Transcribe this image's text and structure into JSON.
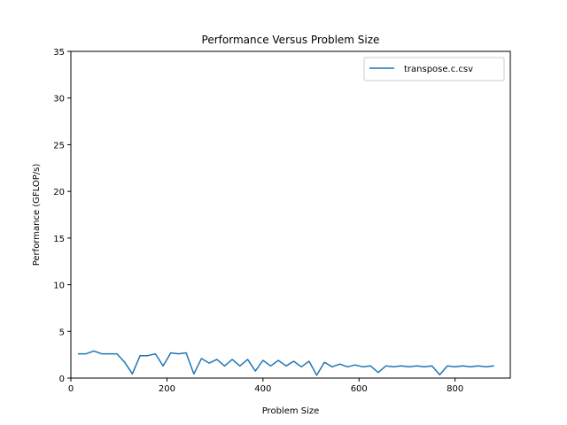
{
  "chart_data": {
    "type": "line",
    "title": "Performance Versus Problem Size",
    "xlabel": "Problem Size",
    "ylabel": "Performance (GFLOP/s)",
    "xlim": [
      0,
      915
    ],
    "ylim": [
      0,
      35
    ],
    "xticks": [
      0,
      200,
      400,
      600,
      800
    ],
    "yticks": [
      0,
      5,
      10,
      15,
      20,
      25,
      30,
      35
    ],
    "grid": false,
    "legend_position": "top-right",
    "series": [
      {
        "name": "transpose.c.csv",
        "color": "#1f77b4",
        "x": [
          16,
          32,
          48,
          64,
          80,
          96,
          112,
          128,
          144,
          160,
          176,
          192,
          208,
          224,
          240,
          256,
          272,
          288,
          304,
          320,
          336,
          352,
          368,
          384,
          400,
          416,
          432,
          448,
          464,
          480,
          496,
          512,
          528,
          544,
          560,
          576,
          592,
          608,
          624,
          640,
          656,
          672,
          688,
          704,
          720,
          736,
          752,
          768,
          784,
          800,
          816,
          832,
          848,
          864,
          880
        ],
        "y": [
          2.6,
          2.6,
          2.9,
          2.6,
          2.6,
          2.6,
          1.7,
          0.45,
          2.4,
          2.4,
          2.6,
          1.3,
          2.7,
          2.6,
          2.7,
          0.45,
          2.1,
          1.6,
          2.0,
          1.3,
          2.0,
          1.3,
          2.0,
          0.75,
          1.9,
          1.3,
          1.9,
          1.3,
          1.8,
          1.2,
          1.8,
          0.3,
          1.7,
          1.2,
          1.5,
          1.2,
          1.4,
          1.2,
          1.3,
          0.6,
          1.3,
          1.2,
          1.3,
          1.2,
          1.3,
          1.2,
          1.3,
          0.35,
          1.3,
          1.2,
          1.3,
          1.2,
          1.3,
          1.2,
          1.3
        ]
      }
    ]
  }
}
